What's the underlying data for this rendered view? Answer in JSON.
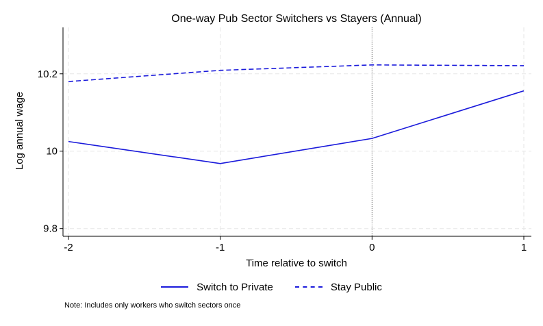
{
  "chart_data": {
    "type": "line",
    "title": "One-way Pub Sector Switchers vs Stayers (Annual)",
    "xlabel": "Time relative to switch",
    "ylabel": "Log annual wage",
    "x": [
      -2,
      -1,
      0,
      1
    ],
    "x_tick_labels": [
      "-2",
      "-1",
      "0",
      "1"
    ],
    "xlim": [
      -2,
      1
    ],
    "y_ticks": [
      9.8,
      10,
      10.2
    ],
    "y_tick_labels": [
      "9.8",
      "10",
      "10.2"
    ],
    "ylim": [
      9.78,
      10.32
    ],
    "vertical_reference_line": 0,
    "grid": true,
    "legend_position": "bottom",
    "series": [
      {
        "name": "Switch to Private",
        "style": "solid",
        "color": "#1a1adb",
        "values": [
          10.025,
          9.968,
          10.033,
          10.156
        ]
      },
      {
        "name": "Stay Public",
        "style": "dashed",
        "color": "#1a1adb",
        "values": [
          10.18,
          10.209,
          10.223,
          10.221
        ]
      }
    ],
    "note": "Note: Includes only workers who switch sectors once"
  }
}
